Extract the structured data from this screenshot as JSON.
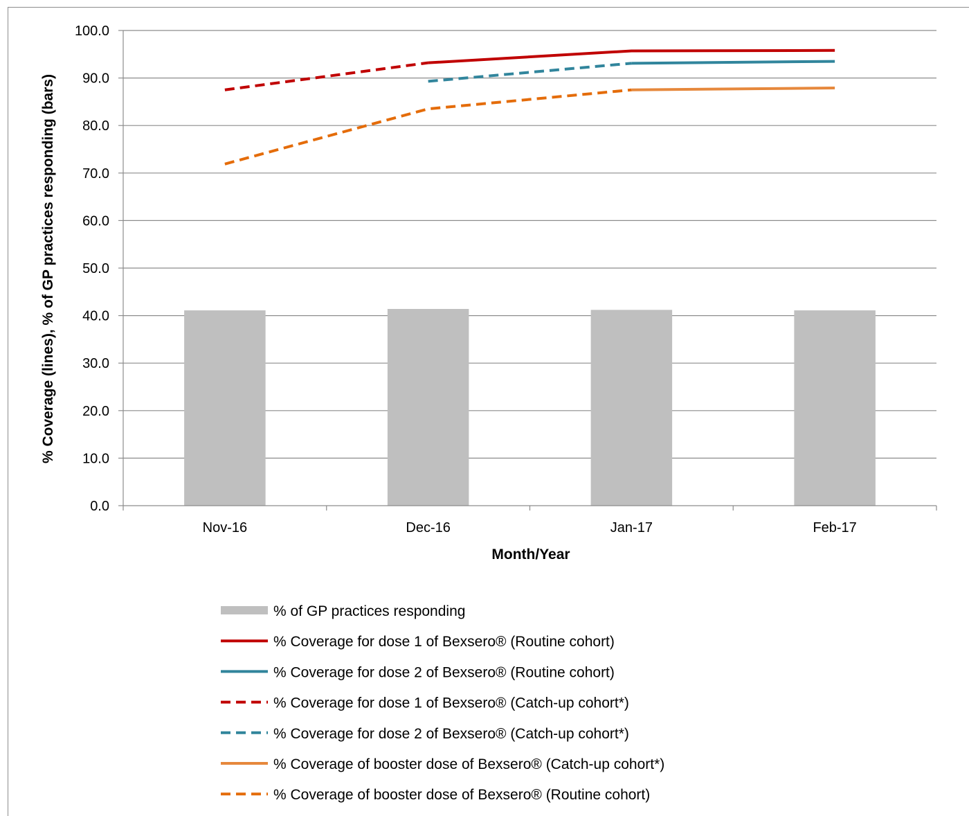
{
  "chart_data": {
    "type": "bar",
    "xlabel": "Month/Year",
    "ylabel": "% Coverage (lines), % of GP practices responding (bars)",
    "ylim": [
      0,
      100
    ],
    "ytick_step": 10,
    "ytick_labels": [
      "0.0",
      "10.0",
      "20.0",
      "30.0",
      "40.0",
      "50.0",
      "60.0",
      "70.0",
      "80.0",
      "90.0",
      "100.0"
    ],
    "categories": [
      "Nov-16",
      "Dec-16",
      "Jan-17",
      "Feb-17"
    ],
    "grid": "horizontal",
    "legend_position": "bottom",
    "bars": {
      "name": "% of GP practices responding",
      "values": [
        41.1,
        41.4,
        41.2,
        41.1
      ],
      "color": "#bfbfbf"
    },
    "series": [
      {
        "name": "% Coverage for dose 1 of Bexsero® (Routine cohort)",
        "values": [
          null,
          93.2,
          95.7,
          95.8
        ],
        "color": "#c00000",
        "dash": "solid"
      },
      {
        "name": "% Coverage for dose 2 of Bexsero® (Routine cohort)",
        "values": [
          null,
          null,
          93.1,
          93.5
        ],
        "color": "#31859c",
        "dash": "solid"
      },
      {
        "name": "% Coverage for dose 1 of Bexsero® (Catch-up cohort*)",
        "values": [
          87.5,
          93.2,
          null,
          null
        ],
        "color": "#c00000",
        "dash": "dashed"
      },
      {
        "name": "% Coverage for dose 2 of Bexsero® (Catch-up cohort*)",
        "values": [
          null,
          89.3,
          93.1,
          null
        ],
        "color": "#31859c",
        "dash": "dashed"
      },
      {
        "name": "% Coverage of booster dose of Bexsero® (Catch-up cohort*)",
        "values": [
          null,
          null,
          87.5,
          87.9
        ],
        "color": "#e6883c",
        "dash": "solid"
      },
      {
        "name": "% Coverage of booster dose of Bexsero® (Routine cohort)",
        "values": [
          71.9,
          83.5,
          87.5,
          null
        ],
        "color": "#e46c0a",
        "dash": "dashed"
      }
    ]
  }
}
